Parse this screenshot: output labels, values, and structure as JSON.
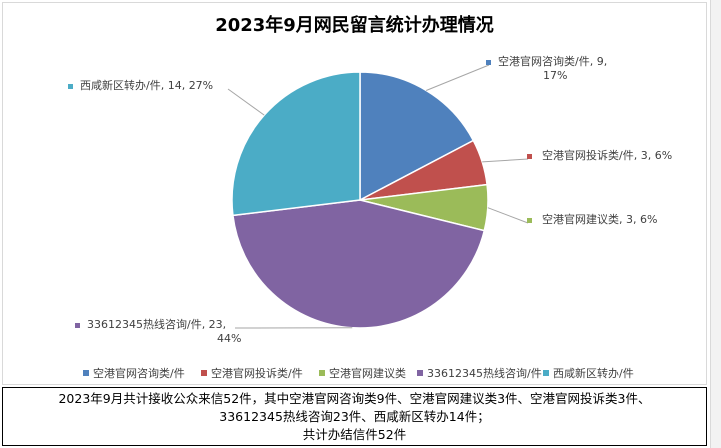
{
  "chart_data": {
    "type": "pie",
    "title": "2023年9月网民留言统计办理情况",
    "categories": [
      "空港官网咨询类/件",
      "空港官网投诉类/件",
      "空港官网建议类",
      "33612345热线咨询/件",
      "西咸新区转办/件"
    ],
    "values": [
      9,
      3,
      3,
      23,
      14
    ],
    "percents": [
      "17%",
      "6%",
      "6%",
      "44%",
      "27%"
    ],
    "colors": [
      "#4F81BD",
      "#C0504D",
      "#9BBB59",
      "#8064A2",
      "#4BACC6"
    ],
    "data_labels": [
      [
        "空港官网咨询类/件, 9,",
        "17%"
      ],
      [
        "空港官网投诉类/件, 3, 6%"
      ],
      [
        "空港官网建议类, 3, 6%"
      ],
      [
        "33612345热线咨询/件, 23,",
        "44%"
      ],
      [
        "西咸新区转办/件, 14, 27%"
      ]
    ],
    "legend": [
      "空港官网咨询类/件",
      "空港官网投诉类/件",
      "空港官网建议类",
      "33612345热线咨询/件",
      "西咸新区转办/件"
    ],
    "legend_position": "bottom"
  },
  "caption": {
    "line1": "2023年9月共计接收公众来信52件，其中空港官网咨询类9件、空港官网建议类3件、空港官网投诉类3件、",
    "line2": "33612345热线咨询23件、西咸新区转办14件；",
    "line3": "共计办结信件52件"
  }
}
